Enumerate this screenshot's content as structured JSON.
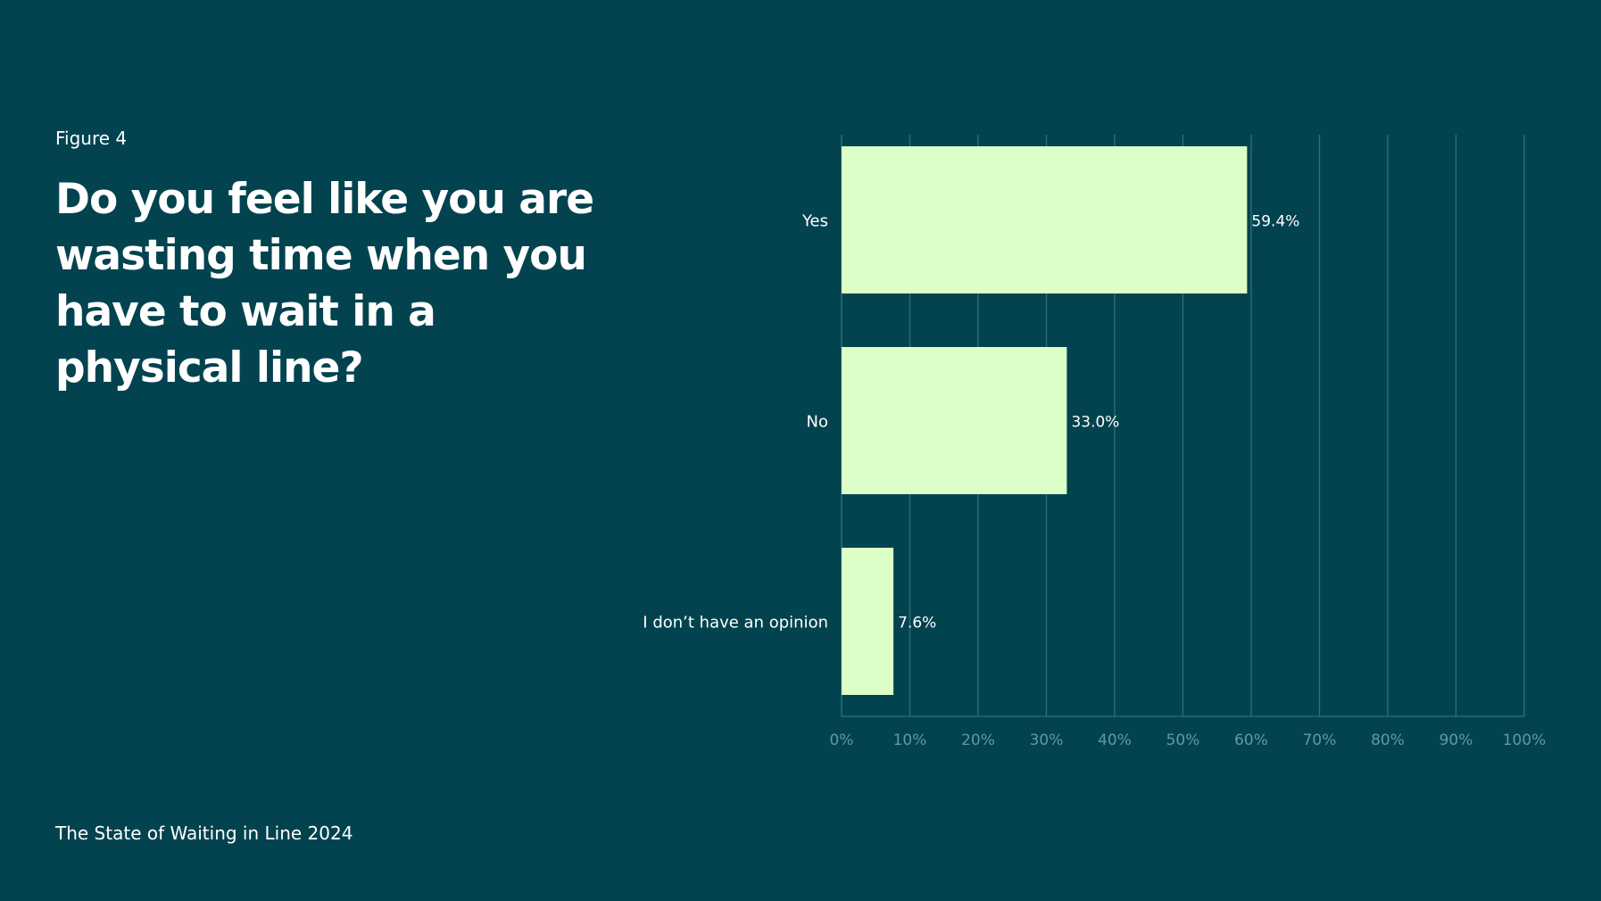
{
  "figure_label": "Figure 4",
  "question": "Do you feel like you are wasting time when you have to wait in a physical line?",
  "footer": "The State of Waiting in Line 2024",
  "colors": {
    "background": "#02434F",
    "bar": "#DCFFC7",
    "gridline": "#2F7179",
    "tick_label": "#5E9BA2",
    "text": "#FFFFFF"
  },
  "chart_data": {
    "type": "bar",
    "orientation": "horizontal",
    "categories": [
      "Yes",
      "No",
      "I don’t have an opinion"
    ],
    "values": [
      59.4,
      33.0,
      7.6
    ],
    "value_labels": [
      "59.4%",
      "33.0%",
      "7.6%"
    ],
    "xlim": [
      0,
      100
    ],
    "x_ticks": [
      0,
      10,
      20,
      30,
      40,
      50,
      60,
      70,
      80,
      90,
      100
    ],
    "x_tick_labels": [
      "0%",
      "10%",
      "20%",
      "30%",
      "40%",
      "50%",
      "60%",
      "70%",
      "80%",
      "90%",
      "100%"
    ],
    "grid": true,
    "legend": "none"
  }
}
